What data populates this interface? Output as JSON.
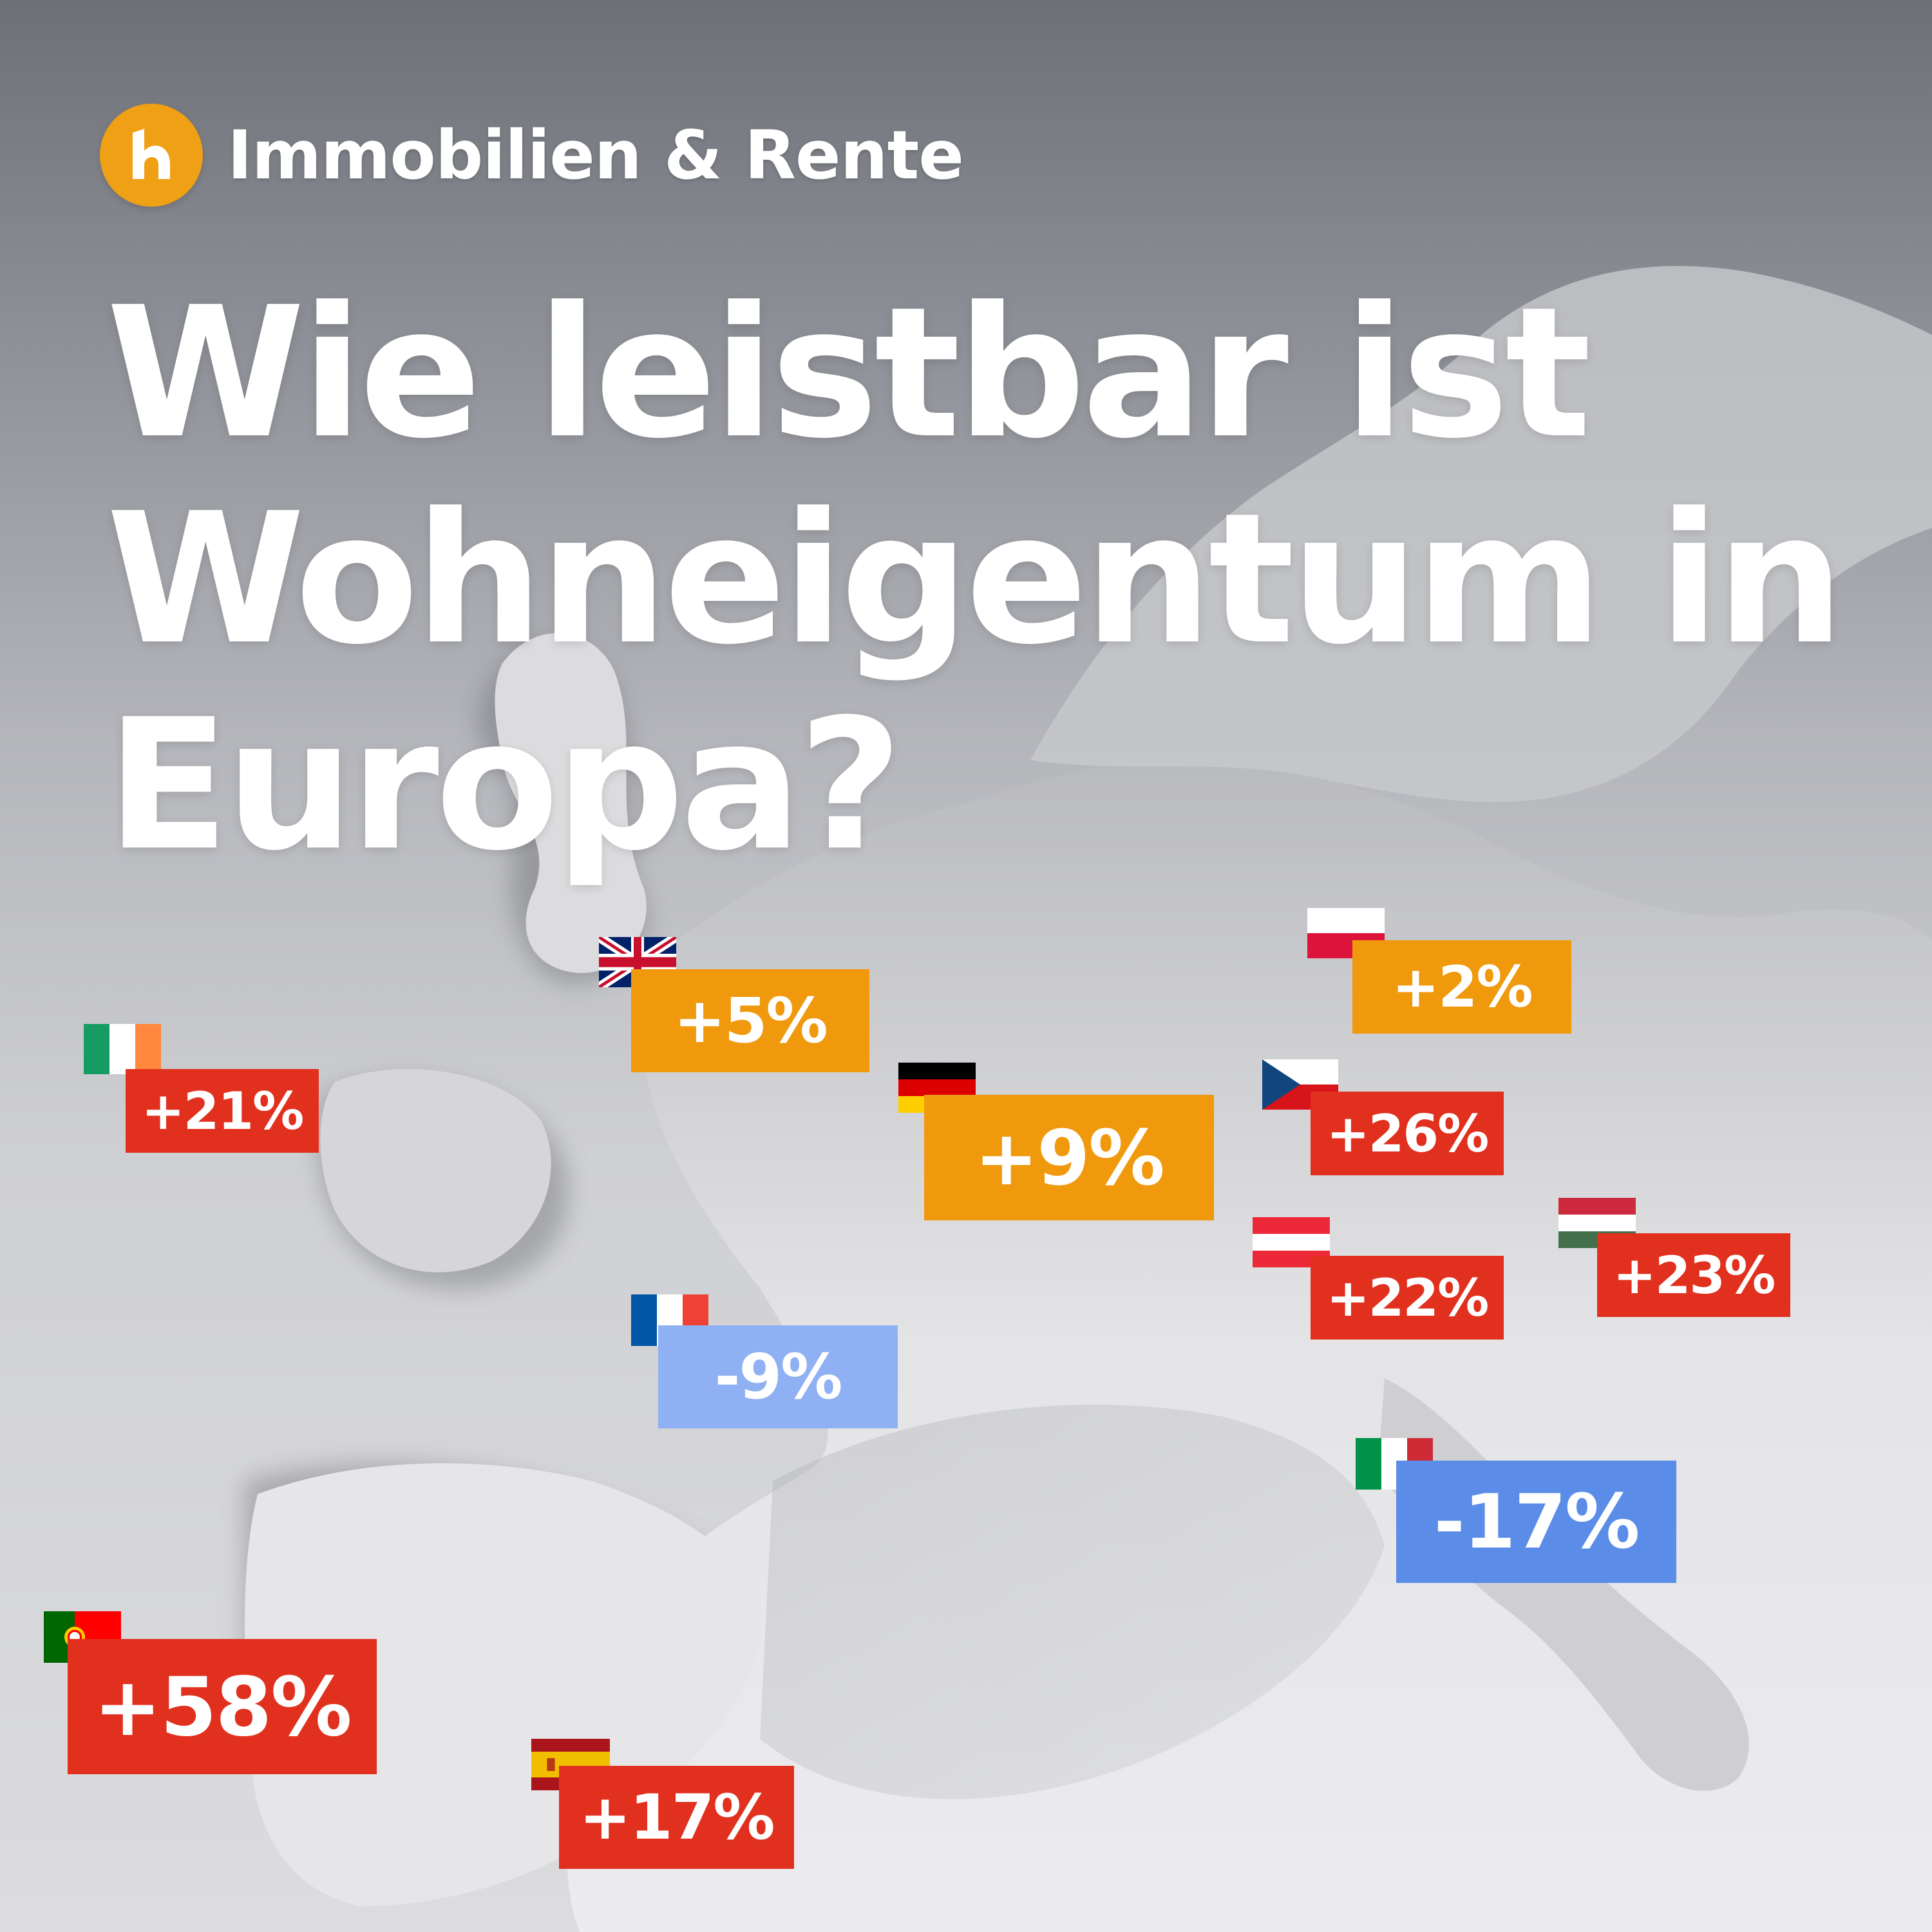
{
  "brand": {
    "name": "Immobilien & Rente",
    "logo_letter": "h",
    "logo_color": "#f0a014"
  },
  "headline": {
    "line1": "Wie leistbar ist",
    "line2": "Wohneigentum in",
    "line3": "Europa?"
  },
  "colors": {
    "strong_increase": "#e1301e",
    "moderate_increase": "#f0990d",
    "slight_decrease": "#8fb0f2",
    "strong_decrease": "#5b8de8"
  },
  "markers": [
    {
      "id": "ie",
      "flag": "ireland-flag",
      "value": "+21%"
    },
    {
      "id": "gb",
      "flag": "united-kingdom-flag",
      "value": "+5%"
    },
    {
      "id": "pl",
      "flag": "poland-flag",
      "value": "+2%"
    },
    {
      "id": "de",
      "flag": "germany-flag",
      "value": "+9%"
    },
    {
      "id": "cz",
      "flag": "czech-republic-flag",
      "value": "+26%"
    },
    {
      "id": "at",
      "flag": "austria-flag",
      "value": "+22%"
    },
    {
      "id": "hu",
      "flag": "hungary-flag",
      "value": "+23%"
    },
    {
      "id": "fr",
      "flag": "france-flag",
      "value": "-9%"
    },
    {
      "id": "it",
      "flag": "italy-flag",
      "value": "-17%"
    },
    {
      "id": "pt",
      "flag": "portugal-flag",
      "value": "+58%"
    },
    {
      "id": "es",
      "flag": "spain-flag",
      "value": "+17%"
    }
  ]
}
